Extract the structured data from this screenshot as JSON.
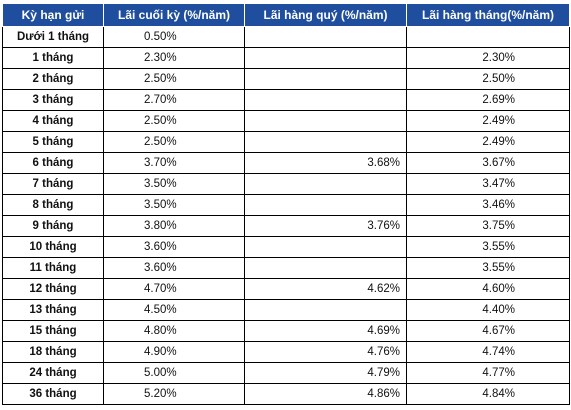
{
  "table": {
    "headers": [
      "Kỳ hạn gửi",
      "Lãi cuối kỳ (%/năm)",
      "Lãi hàng quý (%/năm)",
      "Lãi hàng tháng(%/năm)"
    ],
    "rows": [
      {
        "term": "Dưới 1 tháng",
        "cuoi_ky": "0.50%",
        "hang_quy": "",
        "hang_thang": ""
      },
      {
        "term": "1 tháng",
        "cuoi_ky": "2.30%",
        "hang_quy": "",
        "hang_thang": "2.30%"
      },
      {
        "term": "2 tháng",
        "cuoi_ky": "2.50%",
        "hang_quy": "",
        "hang_thang": "2.50%"
      },
      {
        "term": "3 tháng",
        "cuoi_ky": "2.70%",
        "hang_quy": "",
        "hang_thang": "2.69%"
      },
      {
        "term": "4 tháng",
        "cuoi_ky": "2.50%",
        "hang_quy": "",
        "hang_thang": "2.49%"
      },
      {
        "term": "5 tháng",
        "cuoi_ky": "2.50%",
        "hang_quy": "",
        "hang_thang": "2.49%"
      },
      {
        "term": "6 tháng",
        "cuoi_ky": "3.70%",
        "hang_quy": "3.68%",
        "hang_thang": "3.67%"
      },
      {
        "term": "7 tháng",
        "cuoi_ky": "3.50%",
        "hang_quy": "",
        "hang_thang": "3.47%"
      },
      {
        "term": "8 tháng",
        "cuoi_ky": "3.50%",
        "hang_quy": "",
        "hang_thang": "3.46%"
      },
      {
        "term": "9 tháng",
        "cuoi_ky": "3.80%",
        "hang_quy": "3.76%",
        "hang_thang": "3.75%"
      },
      {
        "term": "10 tháng",
        "cuoi_ky": "3.60%",
        "hang_quy": "",
        "hang_thang": "3.55%"
      },
      {
        "term": "11 tháng",
        "cuoi_ky": "3.60%",
        "hang_quy": "",
        "hang_thang": "3.55%"
      },
      {
        "term": "12 tháng",
        "cuoi_ky": "4.70%",
        "hang_quy": "4.62%",
        "hang_thang": "4.60%"
      },
      {
        "term": "13 tháng",
        "cuoi_ky": "4.50%",
        "hang_quy": "",
        "hang_thang": "4.40%"
      },
      {
        "term": "15 tháng",
        "cuoi_ky": "4.80%",
        "hang_quy": "4.69%",
        "hang_thang": "4.67%"
      },
      {
        "term": "18 tháng",
        "cuoi_ky": "4.90%",
        "hang_quy": "4.76%",
        "hang_thang": "4.74%"
      },
      {
        "term": "24 tháng",
        "cuoi_ky": "5.00%",
        "hang_quy": "4.79%",
        "hang_thang": "4.77%"
      },
      {
        "term": "36 tháng",
        "cuoi_ky": "5.20%",
        "hang_quy": "4.86%",
        "hang_thang": "4.84%"
      }
    ]
  },
  "colors": {
    "header_bg": "#1f4e9e",
    "header_text": "#ffffff",
    "grid": "#000000"
  }
}
